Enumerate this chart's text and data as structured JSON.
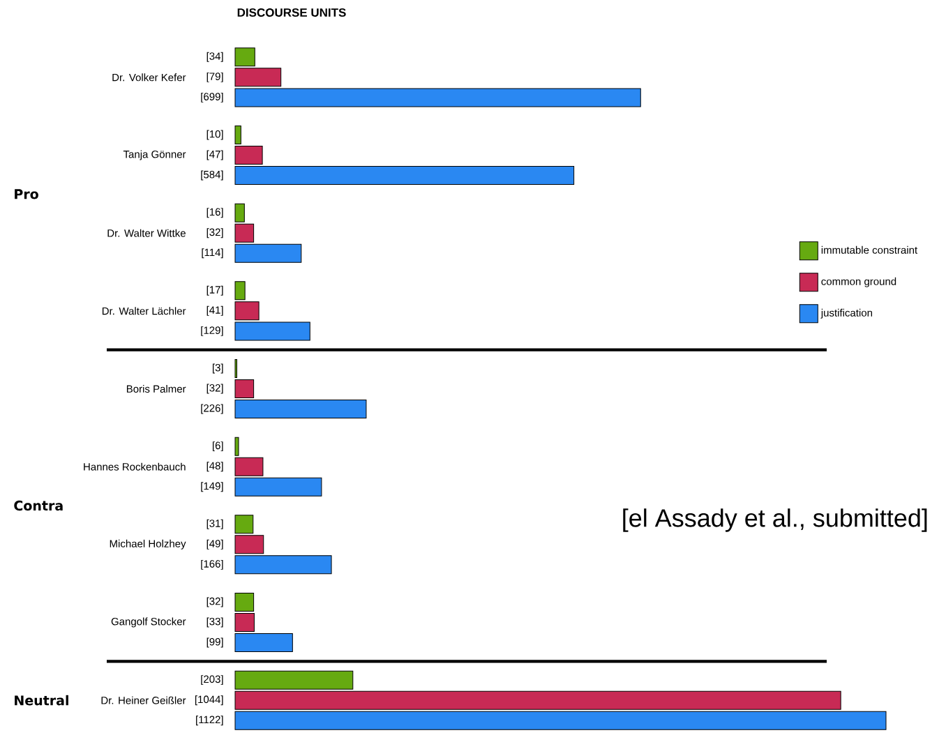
{
  "chart_data": {
    "type": "bar",
    "orientation": "horizontal",
    "title": "DISCOURSE UNITS",
    "categories": [
      "Dr. Volker Kefer",
      "Tanja Gönner",
      "Dr. Walter Wittke",
      "Dr. Walter Lächler",
      "Boris Palmer",
      "Hannes Rockenbauch",
      "Michael Holzhey",
      "Gangolf Stocker",
      "Dr. Heiner Geißler"
    ],
    "series": [
      {
        "name": "immutable constraint",
        "color": "#66aa10",
        "values": [
          34,
          10,
          16,
          17,
          3,
          6,
          31,
          32,
          203
        ],
        "value_labels": [
          "[34]",
          "[10]",
          "[16]",
          "[17]",
          "[3]",
          "[6]",
          "[31]",
          "[32]",
          "[203]"
        ]
      },
      {
        "name": "common ground",
        "color": "#c82a55",
        "values": [
          79,
          47,
          32,
          41,
          32,
          48,
          49,
          33,
          1044
        ],
        "value_labels": [
          "[79]",
          "[47]",
          "[32]",
          "[41]",
          "[32]",
          "[48]",
          "[49]",
          "[33]",
          "[1044]"
        ]
      },
      {
        "name": "justification",
        "color": "#2a88f2",
        "values": [
          699,
          584,
          114,
          129,
          226,
          149,
          166,
          99,
          1122
        ],
        "value_labels": [
          "[699]",
          "[584]",
          "[114]",
          "[129]",
          "[226]",
          "[149]",
          "[166]",
          "[99]",
          "[1122]"
        ]
      }
    ],
    "annotations": [
      "Pro",
      "Contra",
      "Neutral",
      "[el Assady et al.,  submitted]"
    ],
    "legend": "right"
  }
}
